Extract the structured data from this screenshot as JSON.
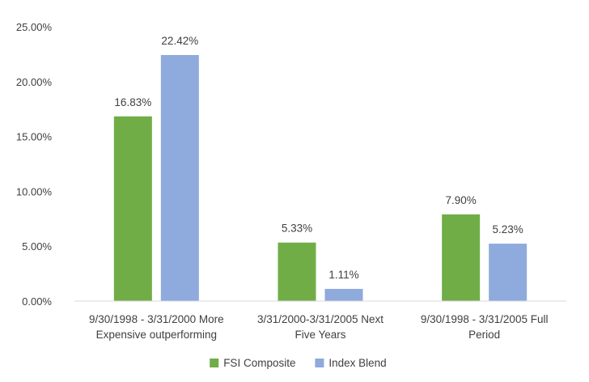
{
  "chart_data": {
    "type": "bar",
    "categories": [
      [
        "9/30/1998 - 3/31/2000 More",
        "Expensive outperforming"
      ],
      [
        "3/31/2000-3/31/2005 Next",
        "Five Years"
      ],
      [
        "9/30/1998 - 3/31/2005 Full",
        "Period"
      ]
    ],
    "series": [
      {
        "name": "FSI Composite",
        "color": "#70ad47",
        "values": [
          16.83,
          5.33,
          7.9
        ],
        "labels": [
          "16.83%",
          "5.33%",
          "7.90%"
        ]
      },
      {
        "name": "Index Blend",
        "color": "#8faadc",
        "values": [
          22.42,
          1.11,
          5.23
        ],
        "labels": [
          "22.42%",
          "1.11%",
          "5.23%"
        ]
      }
    ],
    "ylim": [
      0,
      25
    ],
    "yticks": [
      0,
      5,
      10,
      15,
      20,
      25
    ],
    "ytick_labels": [
      "0.00%",
      "5.00%",
      "10.00%",
      "15.00%",
      "20.00%",
      "25.00%"
    ],
    "grid": false,
    "legend_position": "bottom",
    "title": "",
    "xlabel": "",
    "ylabel": ""
  }
}
